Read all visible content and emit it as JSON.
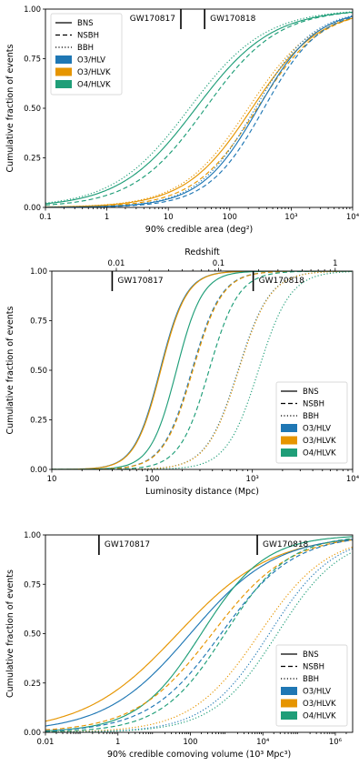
{
  "colors": {
    "O3/HLV": "#1f77b4",
    "O3/HLVK": "#e69500",
    "O4/HLVK": "#1f9e78"
  },
  "line_styles": {
    "BNS": "solid",
    "NSBH": "dashed",
    "BBH": "dotted"
  },
  "chart_data": [
    {
      "type": "line",
      "name": "area",
      "xscale": "log",
      "xlim": [
        0.1,
        10000
      ],
      "ylim": [
        0,
        1
      ],
      "xlabel": "90% credible area (deg²)",
      "ylabel": "Cumulative fraction of events",
      "x_ticks": [
        0.1,
        1,
        10,
        100,
        1000,
        10000
      ],
      "x_tick_labels": [
        "0.1",
        "1",
        "10",
        "100",
        "10³",
        "10⁴"
      ],
      "y_ticks": [
        0,
        0.25,
        0.5,
        0.75,
        1.0
      ],
      "y_tick_labels": [
        "0.00",
        "0.25",
        "0.50",
        "0.75",
        "1.00"
      ],
      "grid": false,
      "legend": {
        "position": "top-left",
        "entries": [
          {
            "label": "BNS",
            "kind": "line",
            "style": "solid"
          },
          {
            "label": "NSBH",
            "kind": "line",
            "style": "dashed"
          },
          {
            "label": "BBH",
            "kind": "line",
            "style": "dotted"
          },
          {
            "label": "O3/HLV",
            "kind": "patch",
            "color_key": "O3/HLV"
          },
          {
            "label": "O3/HLVK",
            "kind": "patch",
            "color_key": "O3/HLVK"
          },
          {
            "label": "O4/HLVK",
            "kind": "patch",
            "color_key": "O4/HLVK"
          }
        ]
      },
      "annotations": [
        {
          "label": "GW170817",
          "x": 16,
          "text_side": "left"
        },
        {
          "label": "GW170818",
          "x": 39,
          "text_side": "right"
        }
      ],
      "series": [
        {
          "config": "O4/HLVK",
          "class": "BNS",
          "median": 28,
          "width": 1.05
        },
        {
          "config": "O4/HLVK",
          "class": "NSBH",
          "median": 40,
          "width": 1.0
        },
        {
          "config": "O4/HLVK",
          "class": "BBH",
          "median": 22,
          "width": 1.05
        },
        {
          "config": "O3/HLVK",
          "class": "BNS",
          "median": 230,
          "width": 0.92
        },
        {
          "config": "O3/HLVK",
          "class": "NSBH",
          "median": 280,
          "width": 0.88
        },
        {
          "config": "O3/HLVK",
          "class": "BBH",
          "median": 200,
          "width": 0.92
        },
        {
          "config": "O3/HLV",
          "class": "BNS",
          "median": 290,
          "width": 0.8
        },
        {
          "config": "O3/HLV",
          "class": "NSBH",
          "median": 360,
          "width": 0.78
        },
        {
          "config": "O3/HLV",
          "class": "BBH",
          "median": 260,
          "width": 0.8
        }
      ]
    },
    {
      "type": "line",
      "name": "distance",
      "xscale": "log",
      "xlim": [
        10,
        10000
      ],
      "ylim": [
        0,
        1
      ],
      "xlabel": "Luminosity distance (Mpc)",
      "ylabel": "Cumulative fraction of events",
      "x_ticks": [
        10,
        100,
        1000,
        10000
      ],
      "x_tick_labels": [
        "10",
        "100",
        "10³",
        "10⁴"
      ],
      "y_ticks": [
        0,
        0.25,
        0.5,
        0.75,
        1.0
      ],
      "y_tick_labels": [
        "0.00",
        "0.25",
        "0.50",
        "0.75",
        "1.00"
      ],
      "secondary_axis": {
        "label": "Redshift",
        "ticks": [
          {
            "label": "0.01",
            "x": 44
          },
          {
            "label": "0.1",
            "x": 460
          },
          {
            "label": "1",
            "x": 6700
          }
        ]
      },
      "grid": false,
      "legend": {
        "position": "lower-right",
        "entries": [
          {
            "label": "BNS",
            "kind": "line",
            "style": "solid"
          },
          {
            "label": "NSBH",
            "kind": "line",
            "style": "dashed"
          },
          {
            "label": "BBH",
            "kind": "line",
            "style": "dotted"
          },
          {
            "label": "O3/HLV",
            "kind": "patch",
            "color_key": "O3/HLV"
          },
          {
            "label": "O3/HLVK",
            "kind": "patch",
            "color_key": "O3/HLVK"
          },
          {
            "label": "O4/HLVK",
            "kind": "patch",
            "color_key": "O4/HLVK"
          }
        ]
      },
      "annotations": [
        {
          "label": "GW170817",
          "x": 40,
          "text_side": "right"
        },
        {
          "label": "GW170818",
          "x": 1020,
          "text_side": "right"
        }
      ],
      "series": [
        {
          "config": "O3/HLV",
          "class": "BNS",
          "median": 120,
          "width": 0.22
        },
        {
          "config": "O3/HLVK",
          "class": "BNS",
          "median": 122,
          "width": 0.22
        },
        {
          "config": "O4/HLVK",
          "class": "BNS",
          "median": 175,
          "width": 0.22
        },
        {
          "config": "O3/HLV",
          "class": "NSBH",
          "median": 250,
          "width": 0.25
        },
        {
          "config": "O3/HLVK",
          "class": "NSBH",
          "median": 255,
          "width": 0.25
        },
        {
          "config": "O4/HLVK",
          "class": "NSBH",
          "median": 370,
          "width": 0.25
        },
        {
          "config": "O3/HLV",
          "class": "BBH",
          "median": 720,
          "width": 0.27
        },
        {
          "config": "O3/HLVK",
          "class": "BBH",
          "median": 730,
          "width": 0.27
        },
        {
          "config": "O4/HLVK",
          "class": "BBH",
          "median": 1150,
          "width": 0.27
        }
      ]
    },
    {
      "type": "line",
      "name": "volume",
      "xscale": "log",
      "xlim": [
        0.01,
        3000000
      ],
      "ylim": [
        0,
        1
      ],
      "xlabel": "90% credible comoving volume (10³ Mpc³)",
      "ylabel": "Cumulative fraction of events",
      "x_ticks": [
        0.01,
        1,
        100,
        10000,
        1000000
      ],
      "x_tick_labels": [
        "0.01",
        "1",
        "100",
        "10⁴",
        "10⁶"
      ],
      "y_ticks": [
        0,
        0.25,
        0.5,
        0.75,
        1.0
      ],
      "y_tick_labels": [
        "0.00",
        "0.25",
        "0.50",
        "0.75",
        "1.00"
      ],
      "grid": false,
      "legend": {
        "position": "lower-right",
        "entries": [
          {
            "label": "BNS",
            "kind": "line",
            "style": "solid"
          },
          {
            "label": "NSBH",
            "kind": "line",
            "style": "dashed"
          },
          {
            "label": "BBH",
            "kind": "line",
            "style": "dotted"
          },
          {
            "label": "O3/HLV",
            "kind": "patch",
            "color_key": "O3/HLV"
          },
          {
            "label": "O3/HLVK",
            "kind": "patch",
            "color_key": "O3/HLVK"
          },
          {
            "label": "O4/HLVK",
            "kind": "patch",
            "color_key": "O4/HLVK"
          }
        ]
      },
      "annotations": [
        {
          "label": "GW170817",
          "x": 0.3,
          "text_side": "right"
        },
        {
          "label": "GW170818",
          "x": 7000,
          "text_side": "right"
        }
      ],
      "series": [
        {
          "config": "O3/HLVK",
          "class": "BNS",
          "median": 45,
          "width": 2.2
        },
        {
          "config": "O3/HLV",
          "class": "BNS",
          "median": 100,
          "width": 2.0
        },
        {
          "config": "O4/HLVK",
          "class": "BNS",
          "median": 200,
          "width": 1.5
        },
        {
          "config": "O3/HLVK",
          "class": "NSBH",
          "median": 400,
          "width": 1.8
        },
        {
          "config": "O3/HLV",
          "class": "NSBH",
          "median": 700,
          "width": 1.7
        },
        {
          "config": "O4/HLVK",
          "class": "NSBH",
          "median": 900,
          "width": 1.5
        },
        {
          "config": "O3/HLVK",
          "class": "BBH",
          "median": 8000,
          "width": 1.6
        },
        {
          "config": "O3/HLV",
          "class": "BBH",
          "median": 15000,
          "width": 1.5
        },
        {
          "config": "O4/HLVK",
          "class": "BBH",
          "median": 25000,
          "width": 1.5
        }
      ]
    }
  ]
}
